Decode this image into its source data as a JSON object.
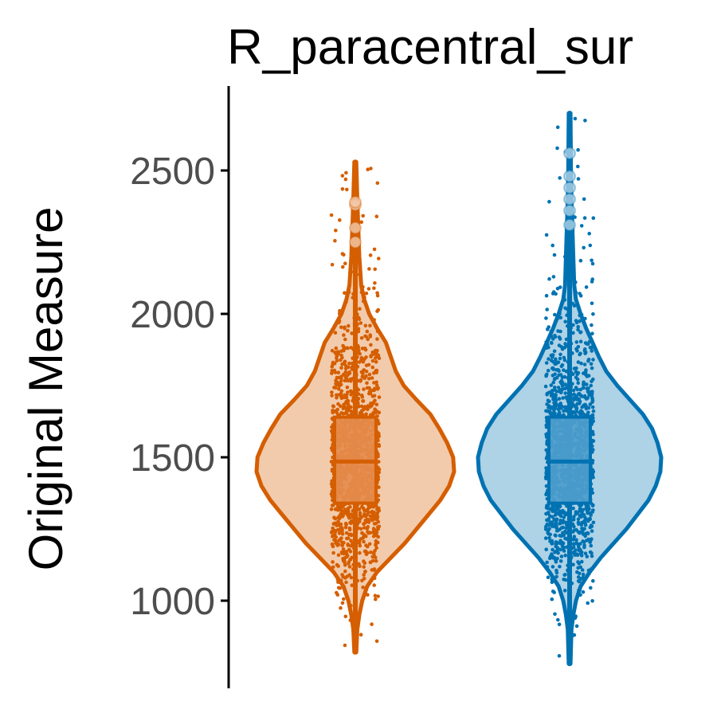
{
  "chart_data": {
    "type": "violin",
    "title": "R_paracentral_sur",
    "ylabel": "Original Measure",
    "xlabel": "",
    "ylim": [
      780,
      2790
    ],
    "yticks": [
      {
        "value": 1000,
        "label": "1000"
      },
      {
        "value": 1500,
        "label": "1500"
      },
      {
        "value": 2000,
        "label": "2000"
      },
      {
        "value": 2500,
        "label": "2500"
      }
    ],
    "grid": false,
    "legend": "none",
    "series": [
      {
        "color": "#d55e00",
        "fill": "#f2cbac",
        "box_fill": "#e58c4d",
        "min": 820,
        "max": 2530,
        "q1": 1340,
        "median": 1485,
        "q3": 1640,
        "density": [
          [
            820,
            0.01
          ],
          [
            900,
            0.02
          ],
          [
            950,
            0.04
          ],
          [
            1000,
            0.07
          ],
          [
            1050,
            0.12
          ],
          [
            1100,
            0.22
          ],
          [
            1150,
            0.36
          ],
          [
            1200,
            0.5
          ],
          [
            1250,
            0.62
          ],
          [
            1300,
            0.74
          ],
          [
            1350,
            0.86
          ],
          [
            1400,
            0.95
          ],
          [
            1450,
            1.0
          ],
          [
            1500,
            0.99
          ],
          [
            1550,
            0.93
          ],
          [
            1600,
            0.85
          ],
          [
            1650,
            0.76
          ],
          [
            1700,
            0.62
          ],
          [
            1750,
            0.49
          ],
          [
            1800,
            0.41
          ],
          [
            1850,
            0.36
          ],
          [
            1900,
            0.31
          ],
          [
            1950,
            0.22
          ],
          [
            2000,
            0.14
          ],
          [
            2050,
            0.09
          ],
          [
            2100,
            0.06
          ],
          [
            2200,
            0.04
          ],
          [
            2300,
            0.03
          ],
          [
            2400,
            0.02
          ],
          [
            2530,
            0.01
          ]
        ],
        "outliers": [
          2250,
          2300,
          2380,
          2390
        ]
      },
      {
        "color": "#0072b2",
        "fill": "#aed2e6",
        "box_fill": "#4d9dcc",
        "min": 780,
        "max": 2700,
        "q1": 1340,
        "median": 1485,
        "q3": 1640,
        "density": [
          [
            780,
            0.01
          ],
          [
            900,
            0.02
          ],
          [
            950,
            0.04
          ],
          [
            1000,
            0.07
          ],
          [
            1050,
            0.12
          ],
          [
            1100,
            0.22
          ],
          [
            1150,
            0.34
          ],
          [
            1200,
            0.48
          ],
          [
            1250,
            0.62
          ],
          [
            1300,
            0.74
          ],
          [
            1350,
            0.86
          ],
          [
            1400,
            0.94
          ],
          [
            1450,
            0.99
          ],
          [
            1500,
            1.0
          ],
          [
            1550,
            0.96
          ],
          [
            1600,
            0.9
          ],
          [
            1650,
            0.8
          ],
          [
            1700,
            0.66
          ],
          [
            1750,
            0.52
          ],
          [
            1800,
            0.4
          ],
          [
            1850,
            0.32
          ],
          [
            1900,
            0.25
          ],
          [
            1950,
            0.18
          ],
          [
            2000,
            0.12
          ],
          [
            2050,
            0.07
          ],
          [
            2100,
            0.05
          ],
          [
            2200,
            0.04
          ],
          [
            2300,
            0.03
          ],
          [
            2400,
            0.02
          ],
          [
            2500,
            0.015
          ],
          [
            2700,
            0.01
          ]
        ],
        "outliers": [
          2310,
          2360,
          2400,
          2440,
          2480,
          2560
        ]
      }
    ]
  }
}
